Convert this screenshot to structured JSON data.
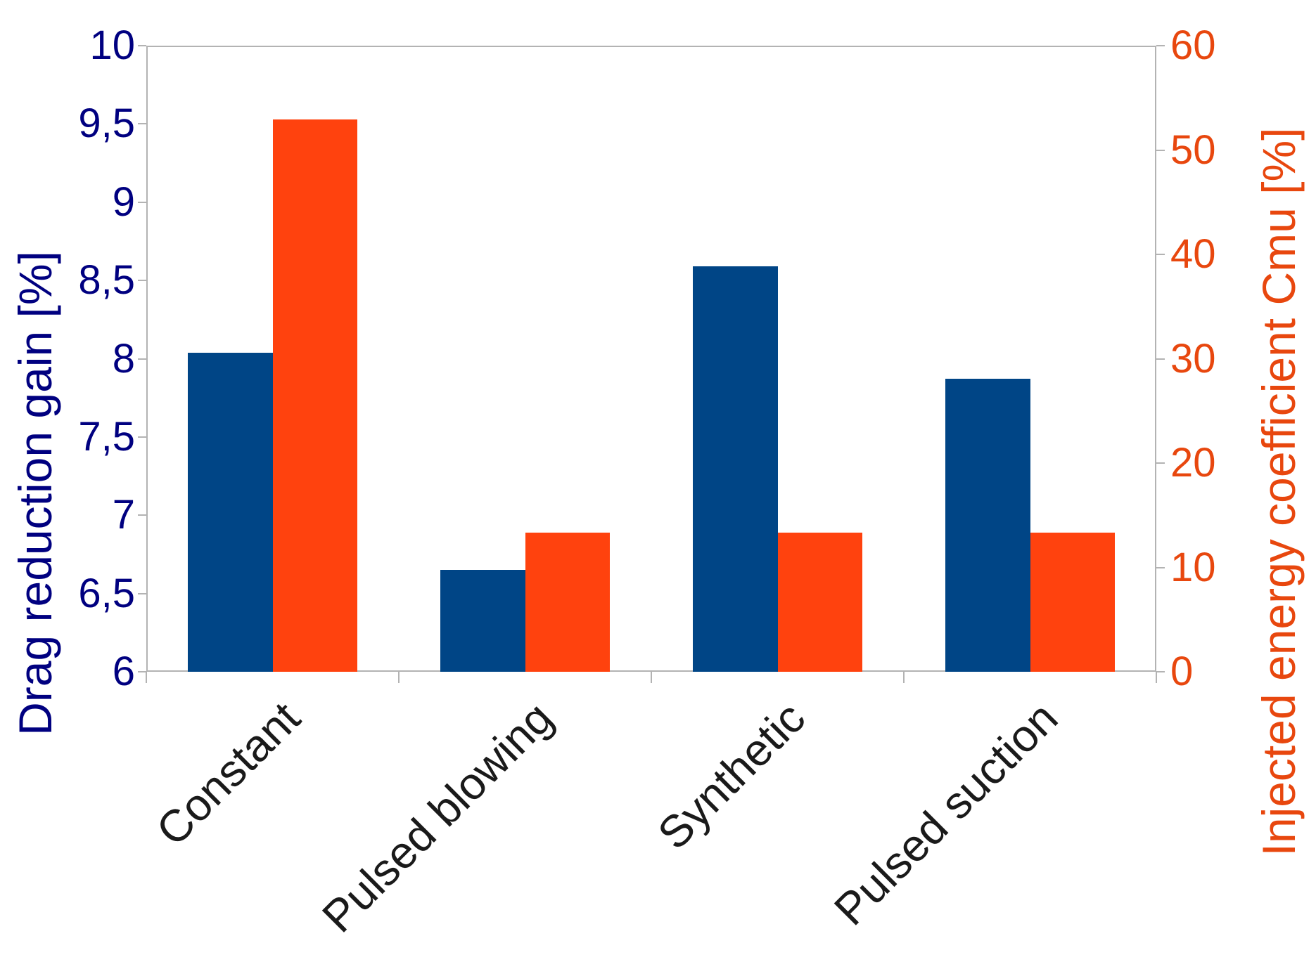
{
  "chart_data": {
    "type": "bar",
    "categories": [
      "Constant",
      "Pulsed blowing",
      "Synthetic",
      "Pulsed suction"
    ],
    "series": [
      {
        "name": "Drag reduction gain",
        "axis": "left",
        "values": [
          8.04,
          6.65,
          8.59,
          7.87
        ]
      },
      {
        "name": "Injected energy coefficient Cmu",
        "axis": "right",
        "values": [
          52.9,
          13.3,
          13.3,
          13.3
        ]
      }
    ],
    "axes": {
      "left": {
        "title": "Drag reduction gain [%]",
        "min": 6,
        "max": 10,
        "tick_values": [
          10,
          9.5,
          9,
          8.5,
          8,
          7.5,
          7,
          6.5,
          6
        ],
        "tick_labels": [
          "10",
          "9,5",
          "9",
          "8,5",
          "8",
          "7,5",
          "7",
          "6,5",
          "6"
        ]
      },
      "right": {
        "title": "Injected energy coefficient Cmu [%]",
        "min": 0,
        "max": 60,
        "tick_values": [
          60,
          50,
          40,
          30,
          20,
          10,
          0
        ],
        "tick_labels": [
          "60",
          "50",
          "40",
          "30",
          "20",
          "10",
          "0"
        ]
      }
    },
    "grid": "horizontal-only",
    "legend": "none",
    "title": ""
  },
  "colors": {
    "left_series_bar": "#004586",
    "right_series_bar": "#ff420e",
    "left_axis_text": "#000080",
    "right_axis_text": "#e8470e",
    "category_text": "#1a1a1a",
    "grid": "#b3b3b3",
    "background": "#ffffff"
  }
}
